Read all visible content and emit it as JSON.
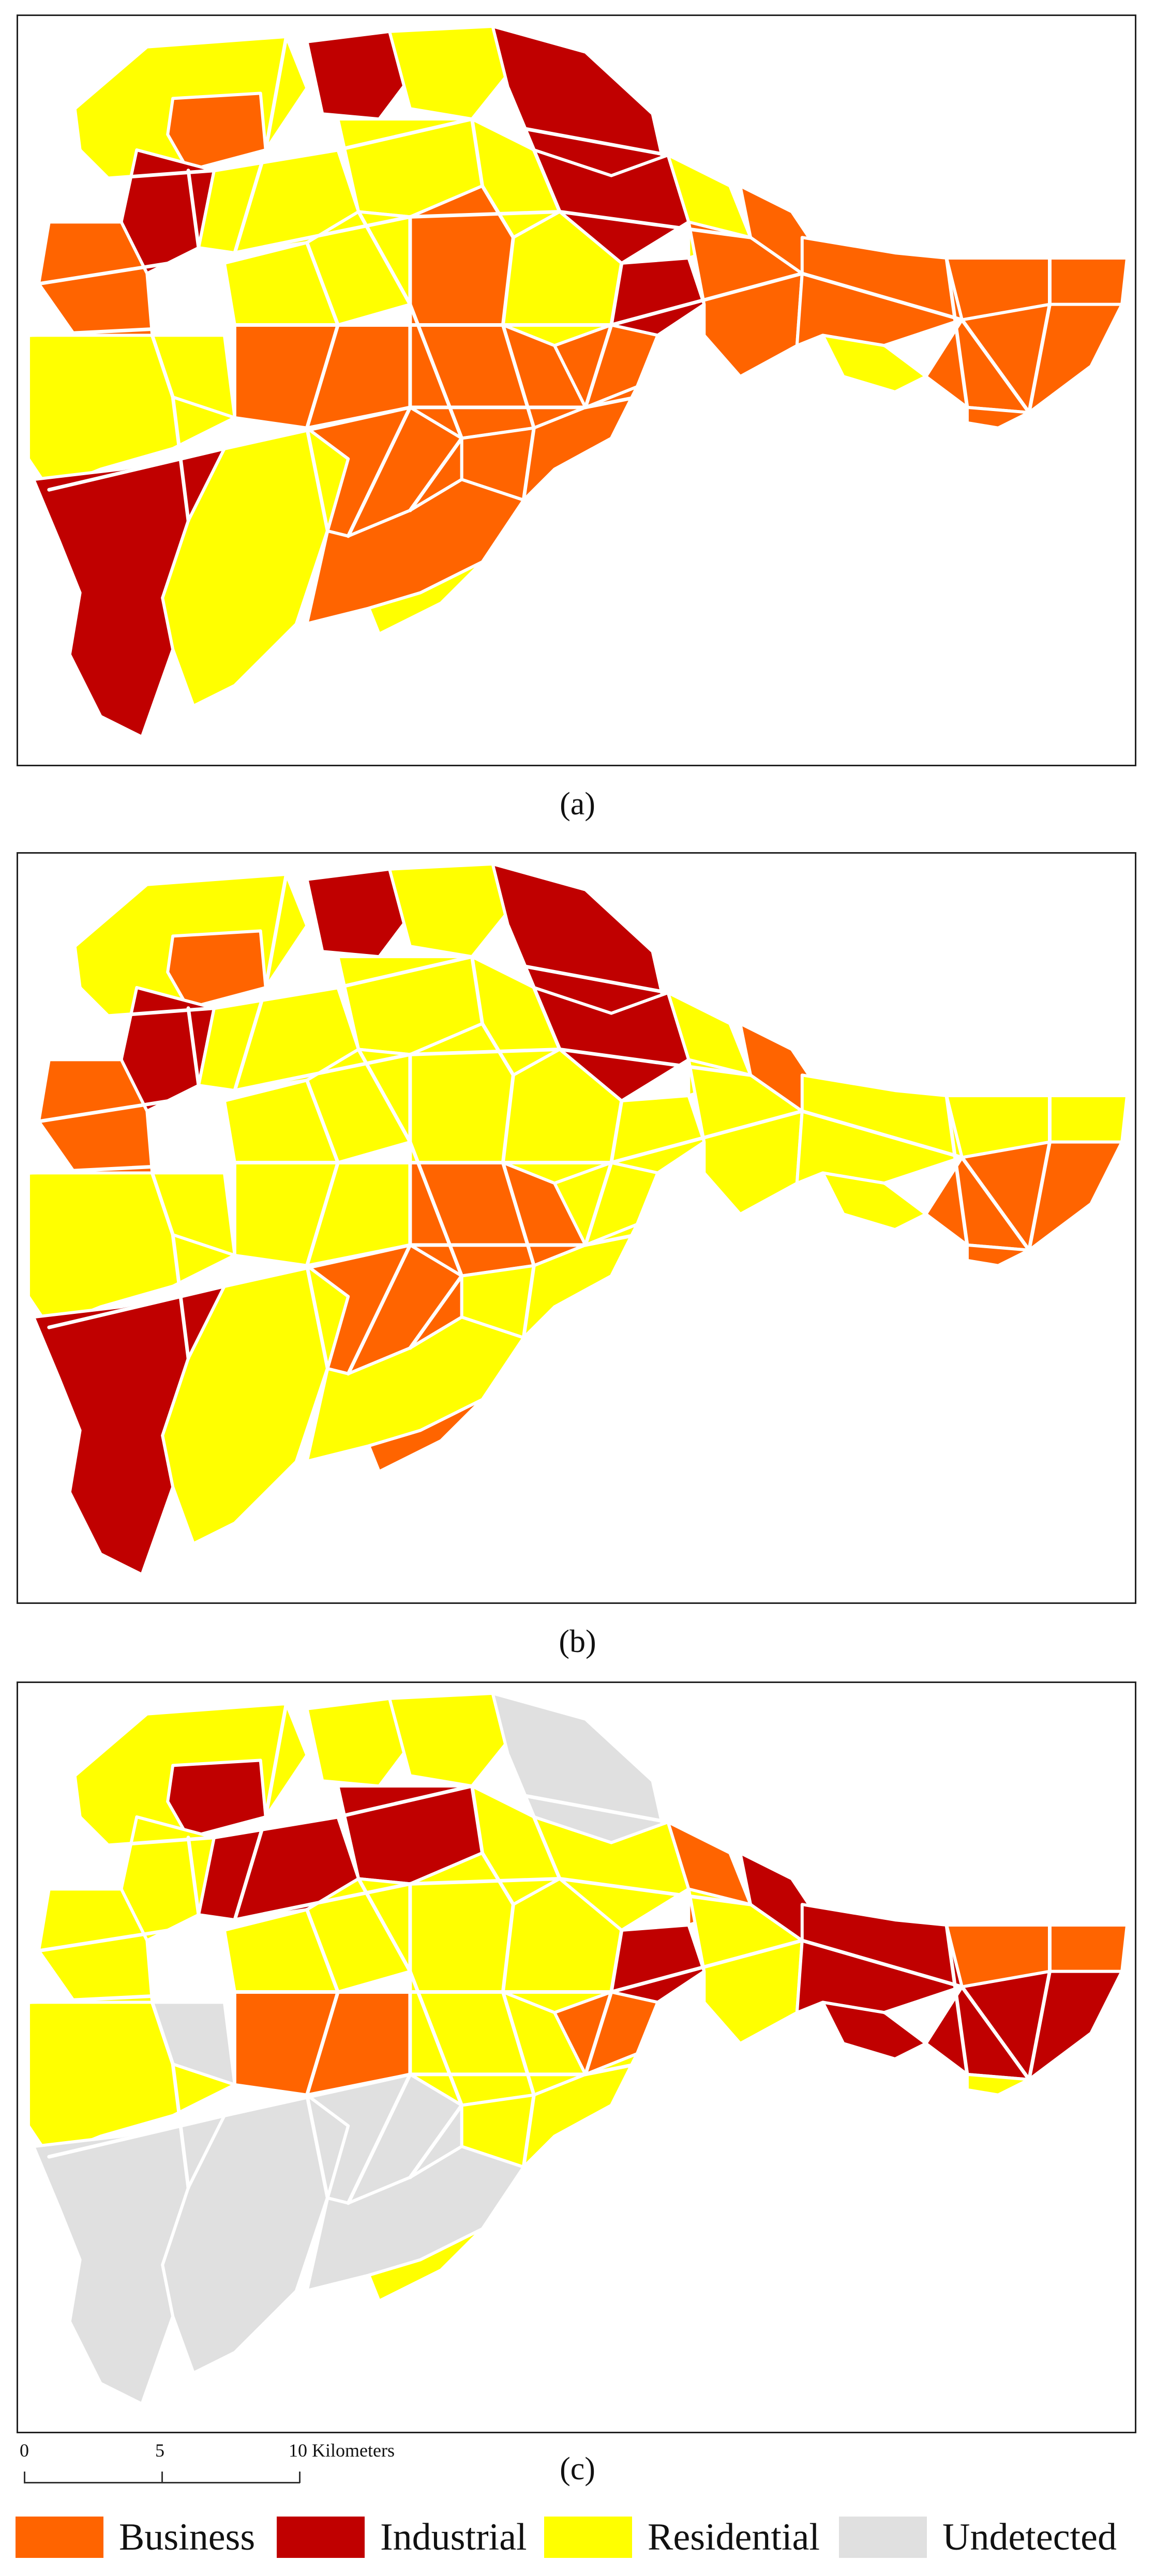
{
  "maps": [
    {
      "caption": "(a)"
    },
    {
      "caption": "(b)"
    },
    {
      "caption": "(c)"
    }
  ],
  "colors": {
    "Business": "#ff6400",
    "Industrial": "#c00000",
    "Residential": "#ffff00",
    "Undetected": "#e0e0e0",
    "road": "#ffffff",
    "frame": "#222222"
  },
  "scalebar": {
    "tick_labels": [
      "0",
      "5",
      "10 Kilometers"
    ]
  },
  "legend": [
    {
      "label": "Business",
      "color_key": "Business"
    },
    {
      "label": "Industrial",
      "color_key": "Industrial"
    },
    {
      "label": "Residential",
      "color_key": "Residential"
    },
    {
      "label": "Undetected",
      "color_key": "Undetected"
    }
  ]
}
